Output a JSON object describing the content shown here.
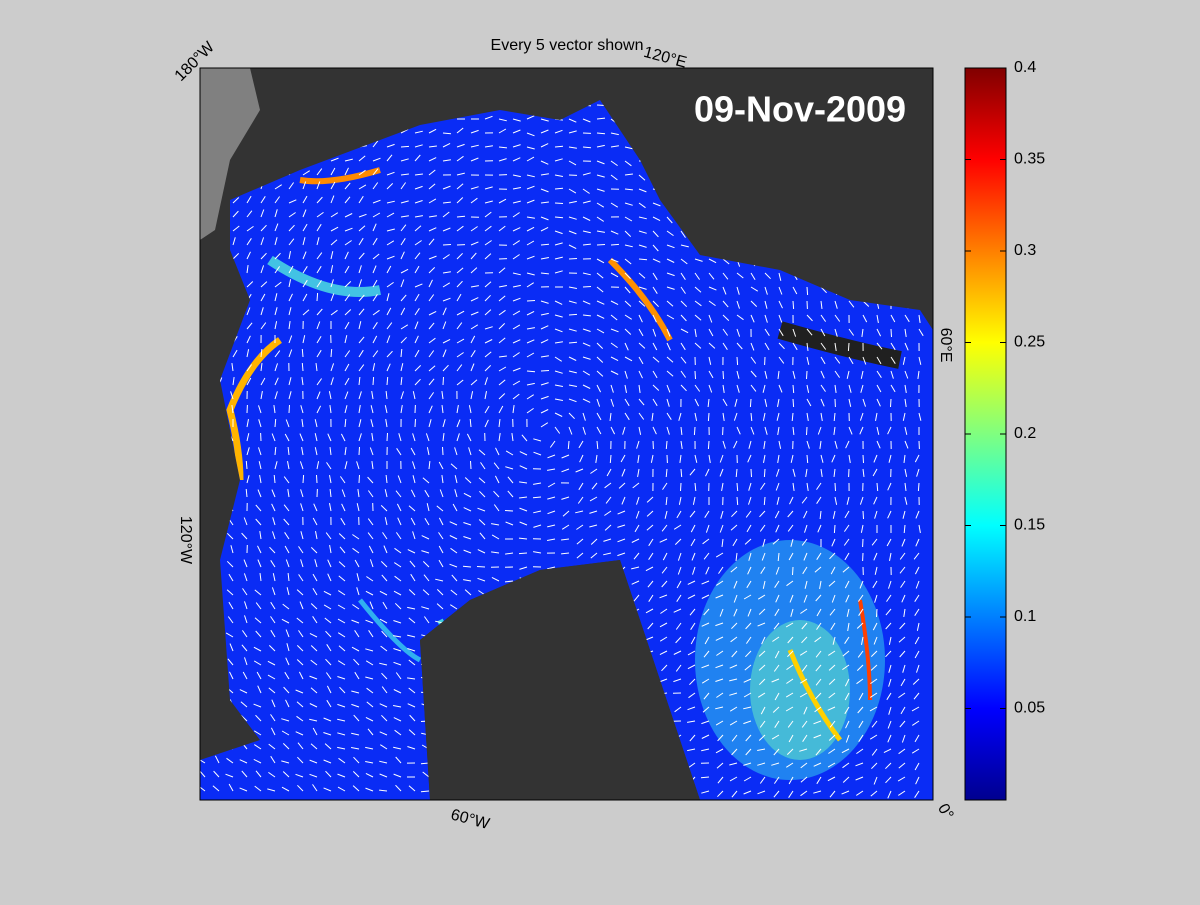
{
  "map": {
    "title": "Every 5 vector shown",
    "date": "09-Nov-2009",
    "longitude_labels": [
      "180°W",
      "120°E",
      "60°E",
      "0°",
      "60°W",
      "120°W"
    ],
    "colorbar": {
      "range": [
        0,
        0.4
      ],
      "ticks": [
        0.05,
        0.1,
        0.15,
        0.2,
        0.25,
        0.3,
        0.35,
        0.4
      ]
    }
  }
}
